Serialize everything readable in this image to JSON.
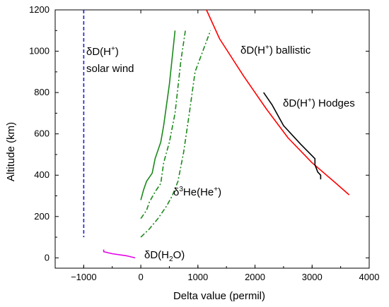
{
  "chart_data": {
    "type": "line",
    "xlabel": "Delta value (permil)",
    "ylabel": "Altitude (km)",
    "xlim": [
      -1500,
      4000
    ],
    "ylim": [
      -50,
      1200
    ],
    "xticks": [
      -1000,
      0,
      1000,
      2000,
      3000,
      4000
    ],
    "yticks": [
      0,
      200,
      400,
      600,
      800,
      1000,
      1200
    ],
    "xtick_labels": [
      "−1000",
      "0",
      "1000",
      "2000",
      "3000",
      "4000"
    ],
    "ytick_labels": [
      "0",
      "200",
      "400",
      "600",
      "800",
      "1000",
      "1200"
    ],
    "grid": false,
    "series": [
      {
        "key": "solar_wind",
        "color": "#1f1fcc",
        "dash": "dashed",
        "points": [
          [
            -1000,
            1200
          ],
          [
            -1000,
            100
          ]
        ]
      },
      {
        "key": "ballistic",
        "color": "#ff0000",
        "dash": "solid",
        "points": [
          [
            1150,
            1200
          ],
          [
            1380,
            1060
          ],
          [
            1800,
            880
          ],
          [
            2200,
            720
          ],
          [
            2580,
            580
          ],
          [
            3000,
            460
          ],
          [
            3380,
            370
          ],
          [
            3650,
            305
          ]
        ]
      },
      {
        "key": "hodges",
        "color": "#000000",
        "dash": "solid",
        "points": [
          [
            2150,
            800
          ],
          [
            2300,
            740
          ],
          [
            2500,
            640
          ],
          [
            2800,
            550
          ],
          [
            3050,
            480
          ],
          [
            3050,
            450
          ],
          [
            3100,
            415
          ],
          [
            3150,
            400
          ],
          [
            3150,
            380
          ]
        ]
      },
      {
        "key": "he3_a",
        "color": "#1a8a1a",
        "dash": "solid",
        "points": [
          [
            0,
            280
          ],
          [
            50,
            330
          ],
          [
            100,
            370
          ],
          [
            200,
            410
          ],
          [
            250,
            480
          ],
          [
            350,
            560
          ],
          [
            400,
            640
          ],
          [
            500,
            840
          ],
          [
            600,
            1100
          ]
        ]
      },
      {
        "key": "he3_b",
        "color": "#1a8a1a",
        "dash": "dashdot",
        "points": [
          [
            0,
            190
          ],
          [
            100,
            230
          ],
          [
            150,
            270
          ],
          [
            250,
            320
          ],
          [
            350,
            360
          ],
          [
            400,
            460
          ],
          [
            500,
            560
          ],
          [
            600,
            700
          ],
          [
            700,
            950
          ],
          [
            780,
            1100
          ]
        ]
      },
      {
        "key": "he3_c",
        "color": "#1a8a1a",
        "dash": "dashdot",
        "points": [
          [
            0,
            100
          ],
          [
            150,
            140
          ],
          [
            300,
            190
          ],
          [
            450,
            250
          ],
          [
            550,
            300
          ],
          [
            650,
            370
          ],
          [
            750,
            510
          ],
          [
            850,
            700
          ],
          [
            950,
            900
          ],
          [
            1220,
            1100
          ]
        ]
      },
      {
        "key": "h2o",
        "color": "#e600e6",
        "dash": "solid",
        "points": [
          [
            -650,
            40
          ],
          [
            -650,
            30
          ],
          [
            -500,
            20
          ],
          [
            -250,
            10
          ],
          [
            -100,
            0
          ]
        ]
      }
    ],
    "annotations": {
      "solar_wind": {
        "pre": "δD(H",
        "sup": "+",
        "post": ")",
        "line2": "solar wind"
      },
      "ballistic": {
        "pre": "δD(H",
        "sup": "+",
        "post": ") ballistic"
      },
      "hodges": {
        "pre": "δD(H",
        "sup": "+",
        "post": ") Hodges"
      },
      "he3": {
        "pre": "δ",
        "sup": "3",
        "post": "He(He",
        "sup2": "+",
        "post2": ")"
      },
      "h2o": {
        "pre": "δD(H",
        "sub": "2",
        "post": "O)"
      }
    }
  }
}
